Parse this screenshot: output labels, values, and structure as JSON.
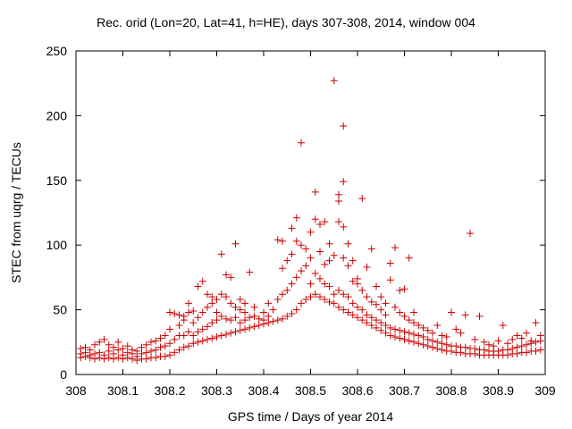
{
  "chart_data": {
    "type": "scatter",
    "title": "Rec. orid (Lon=20, Lat=41, h=HE), days 307-308, 2014, window 004",
    "xlabel": "GPS time / Days of year 2014",
    "ylabel": "STEC from uqrg / TECUs",
    "xlim": [
      308,
      309
    ],
    "ylim": [
      0,
      250
    ],
    "x_ticks": [
      "308",
      "308.1",
      "308.2",
      "308.3",
      "308.4",
      "308.5",
      "308.6",
      "308.7",
      "308.8",
      "308.9",
      "309"
    ],
    "y_ticks": [
      "0",
      "50",
      "100",
      "150",
      "200",
      "250"
    ],
    "marker": "plus",
    "grid": false,
    "legend": "none",
    "color": "#cc0000",
    "points": [
      [
        308.01,
        13
      ],
      [
        308.01,
        16
      ],
      [
        308.01,
        20
      ],
      [
        308.02,
        14
      ],
      [
        308.02,
        17
      ],
      [
        308.02,
        21
      ],
      [
        308.03,
        13
      ],
      [
        308.03,
        15
      ],
      [
        308.03,
        19
      ],
      [
        308.04,
        12
      ],
      [
        308.04,
        16
      ],
      [
        308.04,
        23
      ],
      [
        308.05,
        13
      ],
      [
        308.05,
        17
      ],
      [
        308.05,
        25
      ],
      [
        308.06,
        12
      ],
      [
        308.06,
        15
      ],
      [
        308.06,
        27
      ],
      [
        308.07,
        13
      ],
      [
        308.07,
        18
      ],
      [
        308.07,
        23
      ],
      [
        308.08,
        12
      ],
      [
        308.08,
        16
      ],
      [
        308.08,
        21
      ],
      [
        308.09,
        13
      ],
      [
        308.09,
        19
      ],
      [
        308.09,
        25
      ],
      [
        308.1,
        12
      ],
      [
        308.1,
        15
      ],
      [
        308.1,
        20
      ],
      [
        308.11,
        13
      ],
      [
        308.11,
        17
      ],
      [
        308.11,
        22
      ],
      [
        308.12,
        12
      ],
      [
        308.12,
        16
      ],
      [
        308.12,
        19
      ],
      [
        308.13,
        11
      ],
      [
        308.13,
        14
      ],
      [
        308.13,
        18
      ],
      [
        308.14,
        12
      ],
      [
        308.14,
        16
      ],
      [
        308.14,
        21
      ],
      [
        308.15,
        12
      ],
      [
        308.15,
        17
      ],
      [
        308.15,
        23
      ],
      [
        308.16,
        13
      ],
      [
        308.16,
        18
      ],
      [
        308.16,
        25
      ],
      [
        308.17,
        13
      ],
      [
        308.17,
        19
      ],
      [
        308.17,
        26
      ],
      [
        308.18,
        14
      ],
      [
        308.18,
        21
      ],
      [
        308.18,
        28
      ],
      [
        308.19,
        14
      ],
      [
        308.19,
        22
      ],
      [
        308.19,
        30
      ],
      [
        308.2,
        15
      ],
      [
        308.2,
        24
      ],
      [
        308.2,
        35
      ],
      [
        308.2,
        48
      ],
      [
        308.21,
        17
      ],
      [
        308.21,
        27
      ],
      [
        308.21,
        47
      ],
      [
        308.22,
        19
      ],
      [
        308.22,
        30
      ],
      [
        308.22,
        38
      ],
      [
        308.22,
        46
      ],
      [
        308.23,
        21
      ],
      [
        308.23,
        30
      ],
      [
        308.23,
        42
      ],
      [
        308.23,
        45
      ],
      [
        308.24,
        22
      ],
      [
        308.24,
        33
      ],
      [
        308.24,
        48
      ],
      [
        308.24,
        55
      ],
      [
        308.25,
        24
      ],
      [
        308.25,
        30
      ],
      [
        308.25,
        40
      ],
      [
        308.25,
        49
      ],
      [
        308.26,
        25
      ],
      [
        308.26,
        33
      ],
      [
        308.26,
        44
      ],
      [
        308.26,
        68
      ],
      [
        308.27,
        26
      ],
      [
        308.27,
        35
      ],
      [
        308.27,
        48
      ],
      [
        308.27,
        72
      ],
      [
        308.28,
        27
      ],
      [
        308.28,
        37
      ],
      [
        308.28,
        52
      ],
      [
        308.28,
        62
      ],
      [
        308.29,
        28
      ],
      [
        308.29,
        40
      ],
      [
        308.29,
        55
      ],
      [
        308.29,
        60
      ],
      [
        308.3,
        29
      ],
      [
        308.3,
        42
      ],
      [
        308.3,
        48
      ],
      [
        308.3,
        58
      ],
      [
        308.31,
        30
      ],
      [
        308.31,
        45
      ],
      [
        308.31,
        62
      ],
      [
        308.31,
        93
      ],
      [
        308.32,
        31
      ],
      [
        308.32,
        43
      ],
      [
        308.32,
        60
      ],
      [
        308.32,
        77
      ],
      [
        308.33,
        32
      ],
      [
        308.33,
        42
      ],
      [
        308.33,
        55
      ],
      [
        308.33,
        75
      ],
      [
        308.34,
        33
      ],
      [
        308.34,
        44
      ],
      [
        308.34,
        52
      ],
      [
        308.34,
        101
      ],
      [
        308.35,
        34
      ],
      [
        308.35,
        40
      ],
      [
        308.35,
        50
      ],
      [
        308.35,
        58
      ],
      [
        308.36,
        35
      ],
      [
        308.36,
        42
      ],
      [
        308.36,
        48
      ],
      [
        308.36,
        55
      ],
      [
        308.37,
        36
      ],
      [
        308.37,
        44
      ],
      [
        308.37,
        79
      ],
      [
        308.38,
        37
      ],
      [
        308.38,
        45
      ],
      [
        308.38,
        52
      ],
      [
        308.39,
        38
      ],
      [
        308.39,
        43
      ],
      [
        308.4,
        39
      ],
      [
        308.4,
        42
      ],
      [
        308.4,
        48
      ],
      [
        308.41,
        40
      ],
      [
        308.41,
        45
      ],
      [
        308.41,
        55
      ],
      [
        308.42,
        41
      ],
      [
        308.42,
        50
      ],
      [
        308.43,
        42
      ],
      [
        308.43,
        58
      ],
      [
        308.43,
        104
      ],
      [
        308.44,
        43
      ],
      [
        308.44,
        62
      ],
      [
        308.44,
        82
      ],
      [
        308.44,
        103
      ],
      [
        308.45,
        45
      ],
      [
        308.45,
        65
      ],
      [
        308.45,
        88
      ],
      [
        308.46,
        47
      ],
      [
        308.46,
        70
      ],
      [
        308.46,
        93
      ],
      [
        308.46,
        113
      ],
      [
        308.47,
        50
      ],
      [
        308.47,
        75
      ],
      [
        308.47,
        103
      ],
      [
        308.47,
        121
      ],
      [
        308.48,
        55
      ],
      [
        308.48,
        80
      ],
      [
        308.48,
        100
      ],
      [
        308.48,
        179
      ],
      [
        308.49,
        58
      ],
      [
        308.49,
        84
      ],
      [
        308.49,
        97
      ],
      [
        308.5,
        60
      ],
      [
        308.5,
        70
      ],
      [
        308.5,
        90
      ],
      [
        308.5,
        110
      ],
      [
        308.51,
        62
      ],
      [
        308.51,
        78
      ],
      [
        308.51,
        120
      ],
      [
        308.51,
        141
      ],
      [
        308.52,
        60
      ],
      [
        308.52,
        74
      ],
      [
        308.52,
        95
      ],
      [
        308.52,
        116
      ],
      [
        308.53,
        58
      ],
      [
        308.53,
        70
      ],
      [
        308.53,
        85
      ],
      [
        308.53,
        118
      ],
      [
        308.54,
        56
      ],
      [
        308.54,
        68
      ],
      [
        308.54,
        101
      ],
      [
        308.54,
        88
      ],
      [
        308.55,
        55
      ],
      [
        308.55,
        62
      ],
      [
        308.55,
        92
      ],
      [
        308.55,
        227
      ],
      [
        308.56,
        52
      ],
      [
        308.56,
        65
      ],
      [
        308.56,
        118
      ],
      [
        308.56,
        134
      ],
      [
        308.56,
        139
      ],
      [
        308.57,
        50
      ],
      [
        308.57,
        62
      ],
      [
        308.57,
        90
      ],
      [
        308.57,
        114
      ],
      [
        308.57,
        149
      ],
      [
        308.57,
        192
      ],
      [
        308.58,
        48
      ],
      [
        308.58,
        60
      ],
      [
        308.58,
        84
      ],
      [
        308.58,
        101
      ],
      [
        308.59,
        46
      ],
      [
        308.59,
        55
      ],
      [
        308.59,
        72
      ],
      [
        308.59,
        88
      ],
      [
        308.6,
        44
      ],
      [
        308.6,
        52
      ],
      [
        308.6,
        70
      ],
      [
        308.6,
        74
      ],
      [
        308.61,
        42
      ],
      [
        308.61,
        50
      ],
      [
        308.61,
        65
      ],
      [
        308.61,
        136
      ],
      [
        308.62,
        40
      ],
      [
        308.62,
        46
      ],
      [
        308.62,
        60
      ],
      [
        308.62,
        83
      ],
      [
        308.63,
        38
      ],
      [
        308.63,
        44
      ],
      [
        308.63,
        56
      ],
      [
        308.63,
        97
      ],
      [
        308.64,
        36
      ],
      [
        308.64,
        42
      ],
      [
        308.64,
        54
      ],
      [
        308.64,
        68
      ],
      [
        308.65,
        34
      ],
      [
        308.65,
        40
      ],
      [
        308.65,
        50
      ],
      [
        308.65,
        60
      ],
      [
        308.66,
        32
      ],
      [
        308.66,
        38
      ],
      [
        308.66,
        46
      ],
      [
        308.66,
        55
      ],
      [
        308.67,
        30
      ],
      [
        308.67,
        36
      ],
      [
        308.67,
        73
      ],
      [
        308.67,
        86
      ],
      [
        308.68,
        29
      ],
      [
        308.68,
        35
      ],
      [
        308.68,
        52
      ],
      [
        308.68,
        98
      ],
      [
        308.69,
        28
      ],
      [
        308.69,
        34
      ],
      [
        308.69,
        48
      ],
      [
        308.69,
        65
      ],
      [
        308.7,
        27
      ],
      [
        308.7,
        33
      ],
      [
        308.7,
        45
      ],
      [
        308.7,
        66
      ],
      [
        308.71,
        26
      ],
      [
        308.71,
        32
      ],
      [
        308.71,
        42
      ],
      [
        308.71,
        90
      ],
      [
        308.72,
        25
      ],
      [
        308.72,
        31
      ],
      [
        308.72,
        40
      ],
      [
        308.72,
        48
      ],
      [
        308.73,
        24
      ],
      [
        308.73,
        30
      ],
      [
        308.73,
        38
      ],
      [
        308.74,
        23
      ],
      [
        308.74,
        29
      ],
      [
        308.74,
        36
      ],
      [
        308.75,
        22
      ],
      [
        308.75,
        27
      ],
      [
        308.75,
        34
      ],
      [
        308.76,
        21
      ],
      [
        308.76,
        26
      ],
      [
        308.76,
        32
      ],
      [
        308.77,
        20
      ],
      [
        308.77,
        25
      ],
      [
        308.77,
        38
      ],
      [
        308.78,
        19
      ],
      [
        308.78,
        24
      ],
      [
        308.78,
        30
      ],
      [
        308.79,
        18
      ],
      [
        308.79,
        23
      ],
      [
        308.79,
        29
      ],
      [
        308.8,
        18
      ],
      [
        308.8,
        22
      ],
      [
        308.8,
        48
      ],
      [
        308.81,
        17
      ],
      [
        308.81,
        22
      ],
      [
        308.81,
        35
      ],
      [
        308.82,
        17
      ],
      [
        308.82,
        21
      ],
      [
        308.82,
        32
      ],
      [
        308.83,
        16
      ],
      [
        308.83,
        21
      ],
      [
        308.83,
        46
      ],
      [
        308.84,
        16
      ],
      [
        308.84,
        20
      ],
      [
        308.84,
        109
      ],
      [
        308.85,
        16
      ],
      [
        308.85,
        20
      ],
      [
        308.85,
        27
      ],
      [
        308.86,
        15
      ],
      [
        308.86,
        19
      ],
      [
        308.86,
        45
      ],
      [
        308.87,
        15
      ],
      [
        308.87,
        19
      ],
      [
        308.87,
        25
      ],
      [
        308.88,
        15
      ],
      [
        308.88,
        18
      ],
      [
        308.88,
        23
      ],
      [
        308.89,
        15
      ],
      [
        308.89,
        18
      ],
      [
        308.89,
        22
      ],
      [
        308.9,
        15
      ],
      [
        308.9,
        18
      ],
      [
        308.9,
        26
      ],
      [
        308.91,
        15
      ],
      [
        308.91,
        19
      ],
      [
        308.91,
        38
      ],
      [
        308.92,
        15
      ],
      [
        308.92,
        19
      ],
      [
        308.92,
        24
      ],
      [
        308.93,
        16
      ],
      [
        308.93,
        20
      ],
      [
        308.93,
        27
      ],
      [
        308.94,
        16
      ],
      [
        308.94,
        21
      ],
      [
        308.94,
        30
      ],
      [
        308.95,
        17
      ],
      [
        308.95,
        22
      ],
      [
        308.95,
        28
      ],
      [
        308.96,
        17
      ],
      [
        308.96,
        23
      ],
      [
        308.96,
        32
      ],
      [
        308.97,
        18
      ],
      [
        308.97,
        24
      ],
      [
        308.97,
        26
      ],
      [
        308.98,
        18
      ],
      [
        308.98,
        25
      ],
      [
        308.98,
        40
      ],
      [
        308.99,
        19
      ],
      [
        308.99,
        26
      ],
      [
        308.99,
        30
      ]
    ]
  }
}
